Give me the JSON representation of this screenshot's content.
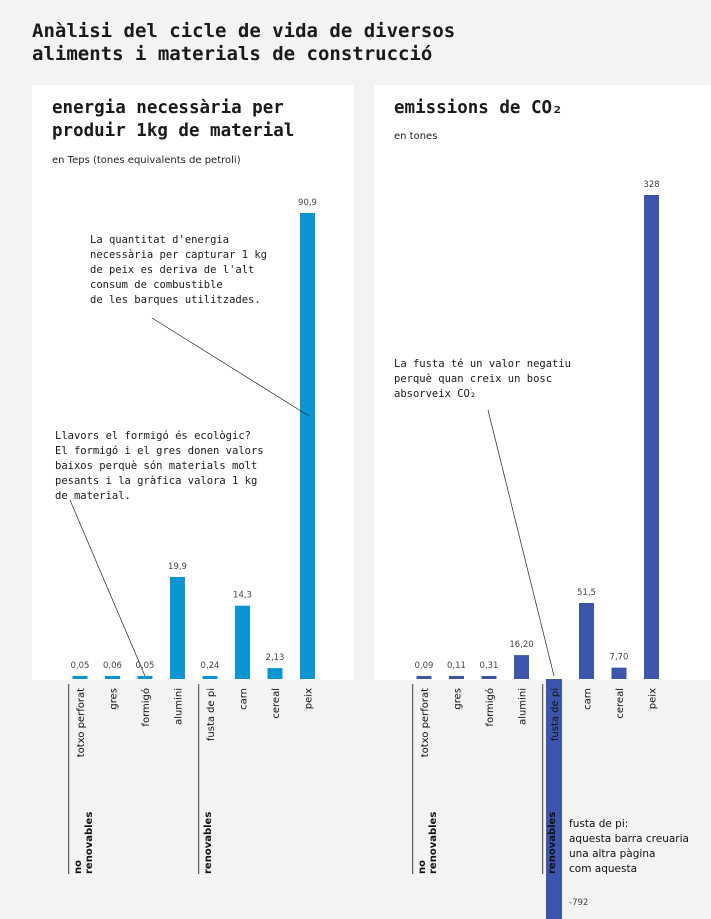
{
  "title": "Anàlisi del cicle de vida de diversos\naliments i materials de construcció",
  "chart_data": [
    {
      "type": "bar",
      "title": "energia necessària per\nproduir 1kg de material",
      "subtitle": "en Teps (tones equivalents de petroli)",
      "categories": [
        "totxo perforat",
        "gres",
        "formigó",
        "alumini",
        "fusta de pi",
        "carn",
        "cereal",
        "peix"
      ],
      "values": [
        0.05,
        0.06,
        0.05,
        19.9,
        0.24,
        14.3,
        2.13,
        90.9
      ],
      "value_labels": [
        "0,05",
        "0,06",
        "0,05",
        "19,9",
        "0,24",
        "14,3",
        "2,13",
        "90,9"
      ],
      "groups": [
        {
          "label": "no\nrenovables",
          "count": 4
        },
        {
          "label": "renovables",
          "count": 4
        }
      ],
      "ylim": [
        0,
        100
      ],
      "color": "#0a96d2",
      "annotations": [
        "La quantitat d'energia\nnecessària per capturar 1 kg\nde peix es deriva de l'alt\nconsum de combustible\nde les barques utilitzades.",
        "Llavors el formigó és ecològic?\nEl formigó i el gres donen valors\nbaixos perquè són materials molt\npesants i la gràfica valora 1 kg\nde material."
      ]
    },
    {
      "type": "bar",
      "title": "emissions de CO₂",
      "subtitle": "en tones",
      "categories": [
        "totxo perforat",
        "gres",
        "formigó",
        "alumini",
        "fusta de pi",
        "carn",
        "cereal",
        "peix"
      ],
      "values": [
        0.09,
        0.11,
        0.31,
        16.2,
        -792,
        51.5,
        7.7,
        328
      ],
      "value_labels": [
        "0,09",
        "0,11",
        "0,31",
        "16,20",
        "-792",
        "51,5",
        "7,70",
        "328"
      ],
      "groups": [
        {
          "label": "no\nrenovables",
          "count": 4
        },
        {
          "label": "renovables",
          "count": 4
        }
      ],
      "ylim": [
        0,
        360
      ],
      "color": "#3c56ad",
      "annotations": [
        "La fusta té un valor negatiu\nperquè quan creix un bosc\nabsorveix CO₂"
      ],
      "negative_note": "fusta de pi:\naquesta barra creuaria\nuna altra pàgina\ncom aquesta"
    }
  ]
}
